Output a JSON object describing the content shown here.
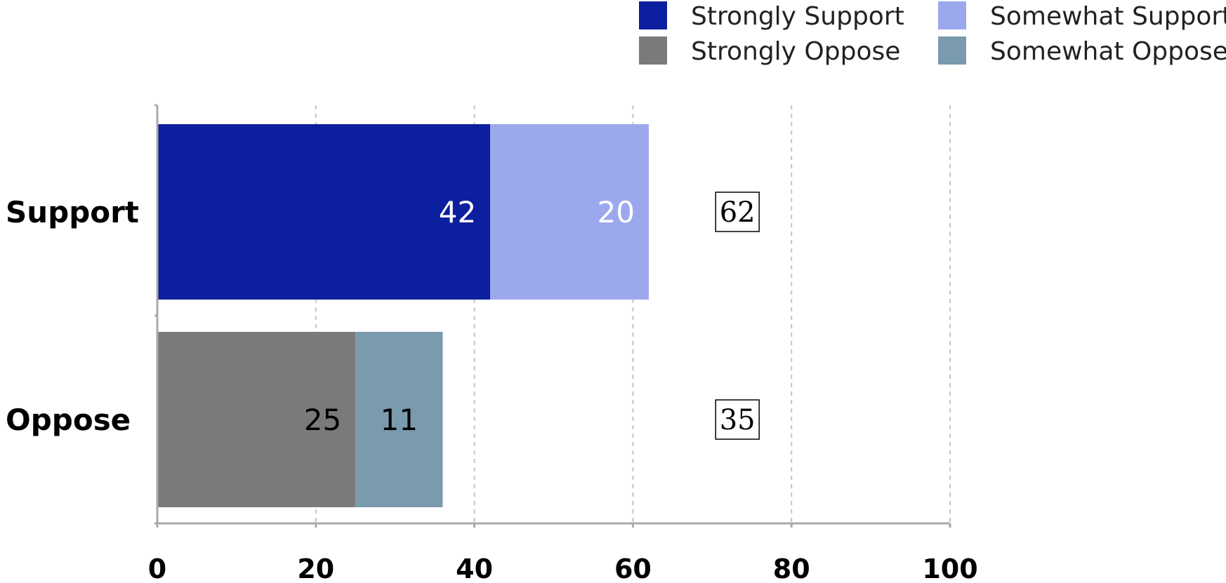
{
  "chart_data": {
    "type": "bar",
    "orientation": "horizontal",
    "stacked": true,
    "categories": [
      "Support",
      "Oppose"
    ],
    "series": [
      {
        "name": "Strongly Support",
        "color": "#0c1f9e",
        "label_color": "#ffffff",
        "values": [
          42,
          null
        ]
      },
      {
        "name": "Somewhat Support",
        "color": "#9ca8ee",
        "label_color": "#ffffff",
        "values": [
          20,
          null
        ]
      },
      {
        "name": "Strongly Oppose",
        "color": "#7a7a7a",
        "label_color": "#000000",
        "values": [
          null,
          25
        ]
      },
      {
        "name": "Somewhat Oppose",
        "color": "#7a9aae",
        "label_color": "#000000",
        "values": [
          null,
          11
        ]
      }
    ],
    "totals": [
      62,
      35
    ],
    "total_position": 73,
    "xlim": [
      0,
      100
    ],
    "xticks": [
      0,
      20,
      40,
      60,
      80,
      100
    ],
    "grid": true,
    "legend_position": "top-right",
    "title": "",
    "xlabel": "",
    "ylabel": ""
  }
}
